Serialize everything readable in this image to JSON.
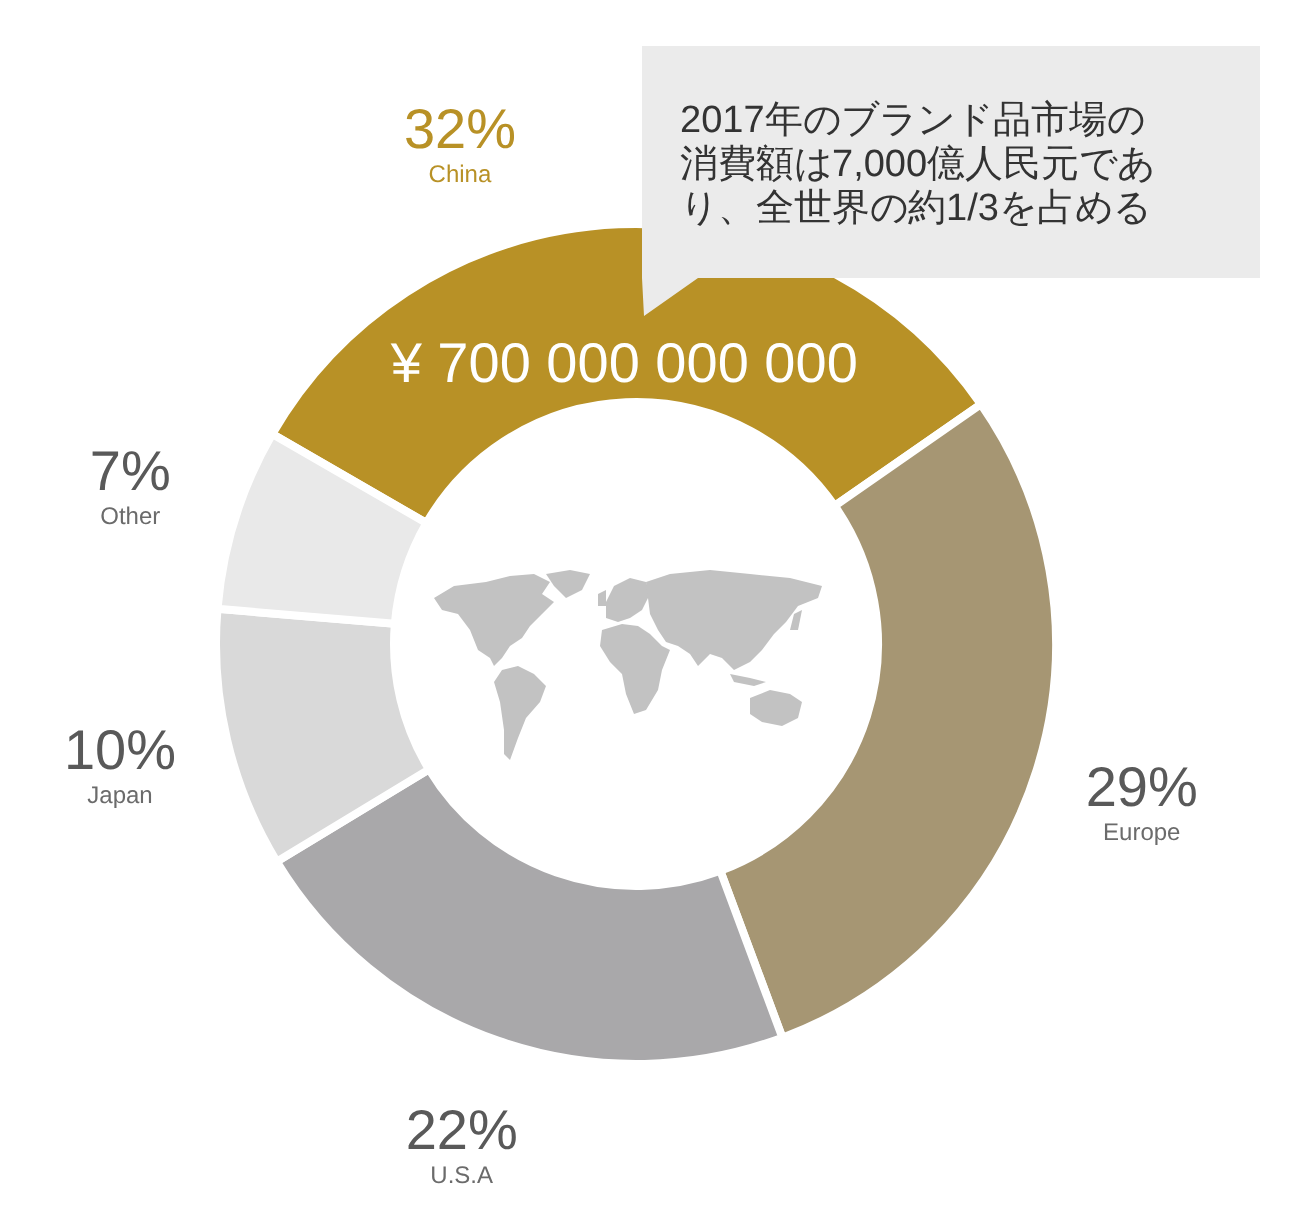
{
  "chart_data": {
    "type": "donut",
    "categories": [
      "China",
      "Europe",
      "U.S.A",
      "Japan",
      "Other"
    ],
    "values": [
      32,
      29,
      22,
      10,
      7
    ],
    "colors": [
      "#b89126",
      "#a69673",
      "#a9a8aa",
      "#d9d9d9",
      "#e9e9e9"
    ],
    "value_labels": [
      "32%",
      "29%",
      "22%",
      "10%",
      "7%"
    ],
    "annotations": [
      "2017年のブランド品市場の消費額は7,000億人民元であり、全世界の約1/3を占める",
      {
        "text": "¥ 700 000 000 000",
        "x": "China"
      }
    ]
  }
}
